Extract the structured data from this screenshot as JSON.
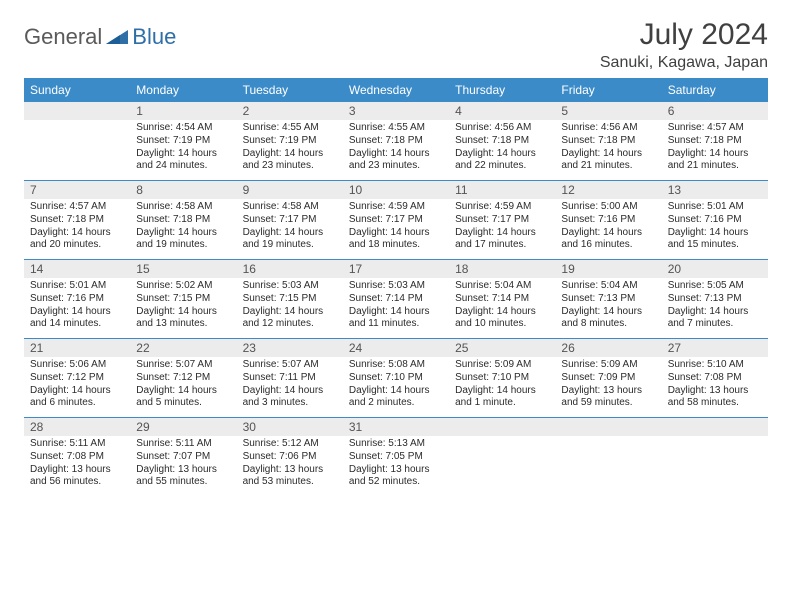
{
  "logo": {
    "text1": "General",
    "text2": "Blue"
  },
  "title": "July 2024",
  "location": "Sanuki, Kagawa, Japan",
  "dow": [
    "Sunday",
    "Monday",
    "Tuesday",
    "Wednesday",
    "Thursday",
    "Friday",
    "Saturday"
  ],
  "colors": {
    "header_bg": "#3b8bc9",
    "header_fg": "#ffffff",
    "daynum_bg": "#ececec",
    "text": "#2b2b2b",
    "title": "#404040",
    "logo_gray": "#5a5a5a",
    "logo_blue": "#2f6fa8"
  },
  "weeks": [
    [
      {
        "n": "",
        "sr": "",
        "ss": "",
        "dl": ""
      },
      {
        "n": "1",
        "sr": "Sunrise: 4:54 AM",
        "ss": "Sunset: 7:19 PM",
        "dl": "Daylight: 14 hours and 24 minutes."
      },
      {
        "n": "2",
        "sr": "Sunrise: 4:55 AM",
        "ss": "Sunset: 7:19 PM",
        "dl": "Daylight: 14 hours and 23 minutes."
      },
      {
        "n": "3",
        "sr": "Sunrise: 4:55 AM",
        "ss": "Sunset: 7:18 PM",
        "dl": "Daylight: 14 hours and 23 minutes."
      },
      {
        "n": "4",
        "sr": "Sunrise: 4:56 AM",
        "ss": "Sunset: 7:18 PM",
        "dl": "Daylight: 14 hours and 22 minutes."
      },
      {
        "n": "5",
        "sr": "Sunrise: 4:56 AM",
        "ss": "Sunset: 7:18 PM",
        "dl": "Daylight: 14 hours and 21 minutes."
      },
      {
        "n": "6",
        "sr": "Sunrise: 4:57 AM",
        "ss": "Sunset: 7:18 PM",
        "dl": "Daylight: 14 hours and 21 minutes."
      }
    ],
    [
      {
        "n": "7",
        "sr": "Sunrise: 4:57 AM",
        "ss": "Sunset: 7:18 PM",
        "dl": "Daylight: 14 hours and 20 minutes."
      },
      {
        "n": "8",
        "sr": "Sunrise: 4:58 AM",
        "ss": "Sunset: 7:18 PM",
        "dl": "Daylight: 14 hours and 19 minutes."
      },
      {
        "n": "9",
        "sr": "Sunrise: 4:58 AM",
        "ss": "Sunset: 7:17 PM",
        "dl": "Daylight: 14 hours and 19 minutes."
      },
      {
        "n": "10",
        "sr": "Sunrise: 4:59 AM",
        "ss": "Sunset: 7:17 PM",
        "dl": "Daylight: 14 hours and 18 minutes."
      },
      {
        "n": "11",
        "sr": "Sunrise: 4:59 AM",
        "ss": "Sunset: 7:17 PM",
        "dl": "Daylight: 14 hours and 17 minutes."
      },
      {
        "n": "12",
        "sr": "Sunrise: 5:00 AM",
        "ss": "Sunset: 7:16 PM",
        "dl": "Daylight: 14 hours and 16 minutes."
      },
      {
        "n": "13",
        "sr": "Sunrise: 5:01 AM",
        "ss": "Sunset: 7:16 PM",
        "dl": "Daylight: 14 hours and 15 minutes."
      }
    ],
    [
      {
        "n": "14",
        "sr": "Sunrise: 5:01 AM",
        "ss": "Sunset: 7:16 PM",
        "dl": "Daylight: 14 hours and 14 minutes."
      },
      {
        "n": "15",
        "sr": "Sunrise: 5:02 AM",
        "ss": "Sunset: 7:15 PM",
        "dl": "Daylight: 14 hours and 13 minutes."
      },
      {
        "n": "16",
        "sr": "Sunrise: 5:03 AM",
        "ss": "Sunset: 7:15 PM",
        "dl": "Daylight: 14 hours and 12 minutes."
      },
      {
        "n": "17",
        "sr": "Sunrise: 5:03 AM",
        "ss": "Sunset: 7:14 PM",
        "dl": "Daylight: 14 hours and 11 minutes."
      },
      {
        "n": "18",
        "sr": "Sunrise: 5:04 AM",
        "ss": "Sunset: 7:14 PM",
        "dl": "Daylight: 14 hours and 10 minutes."
      },
      {
        "n": "19",
        "sr": "Sunrise: 5:04 AM",
        "ss": "Sunset: 7:13 PM",
        "dl": "Daylight: 14 hours and 8 minutes."
      },
      {
        "n": "20",
        "sr": "Sunrise: 5:05 AM",
        "ss": "Sunset: 7:13 PM",
        "dl": "Daylight: 14 hours and 7 minutes."
      }
    ],
    [
      {
        "n": "21",
        "sr": "Sunrise: 5:06 AM",
        "ss": "Sunset: 7:12 PM",
        "dl": "Daylight: 14 hours and 6 minutes."
      },
      {
        "n": "22",
        "sr": "Sunrise: 5:07 AM",
        "ss": "Sunset: 7:12 PM",
        "dl": "Daylight: 14 hours and 5 minutes."
      },
      {
        "n": "23",
        "sr": "Sunrise: 5:07 AM",
        "ss": "Sunset: 7:11 PM",
        "dl": "Daylight: 14 hours and 3 minutes."
      },
      {
        "n": "24",
        "sr": "Sunrise: 5:08 AM",
        "ss": "Sunset: 7:10 PM",
        "dl": "Daylight: 14 hours and 2 minutes."
      },
      {
        "n": "25",
        "sr": "Sunrise: 5:09 AM",
        "ss": "Sunset: 7:10 PM",
        "dl": "Daylight: 14 hours and 1 minute."
      },
      {
        "n": "26",
        "sr": "Sunrise: 5:09 AM",
        "ss": "Sunset: 7:09 PM",
        "dl": "Daylight: 13 hours and 59 minutes."
      },
      {
        "n": "27",
        "sr": "Sunrise: 5:10 AM",
        "ss": "Sunset: 7:08 PM",
        "dl": "Daylight: 13 hours and 58 minutes."
      }
    ],
    [
      {
        "n": "28",
        "sr": "Sunrise: 5:11 AM",
        "ss": "Sunset: 7:08 PM",
        "dl": "Daylight: 13 hours and 56 minutes."
      },
      {
        "n": "29",
        "sr": "Sunrise: 5:11 AM",
        "ss": "Sunset: 7:07 PM",
        "dl": "Daylight: 13 hours and 55 minutes."
      },
      {
        "n": "30",
        "sr": "Sunrise: 5:12 AM",
        "ss": "Sunset: 7:06 PM",
        "dl": "Daylight: 13 hours and 53 minutes."
      },
      {
        "n": "31",
        "sr": "Sunrise: 5:13 AM",
        "ss": "Sunset: 7:05 PM",
        "dl": "Daylight: 13 hours and 52 minutes."
      },
      {
        "n": "",
        "sr": "",
        "ss": "",
        "dl": ""
      },
      {
        "n": "",
        "sr": "",
        "ss": "",
        "dl": ""
      },
      {
        "n": "",
        "sr": "",
        "ss": "",
        "dl": ""
      }
    ]
  ]
}
